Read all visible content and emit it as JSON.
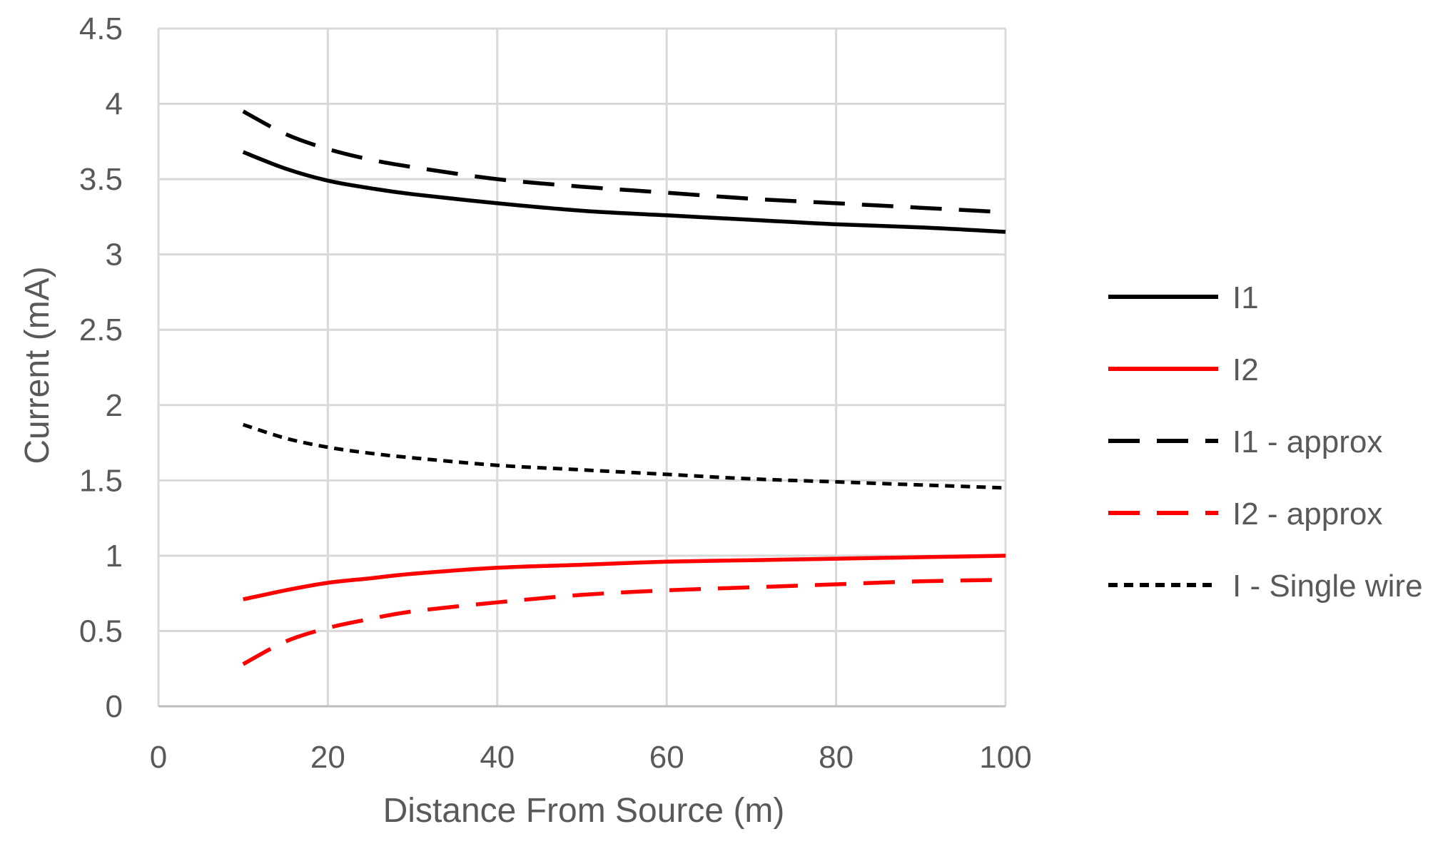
{
  "chart_data": {
    "type": "line",
    "title": "",
    "xlabel": "Distance From Source (m)",
    "ylabel": "Current (mA)",
    "xlim": [
      0,
      100
    ],
    "ylim": [
      0,
      4.5
    ],
    "xticks": [
      0,
      20,
      40,
      60,
      80,
      100
    ],
    "yticks": [
      0,
      0.5,
      1,
      1.5,
      2,
      2.5,
      3,
      3.5,
      4,
      4.5
    ],
    "x_tick_labels": [
      "0",
      "20",
      "40",
      "60",
      "80",
      "100"
    ],
    "y_tick_labels": [
      "0",
      "0.5",
      "1",
      "1.5",
      "2",
      "2.5",
      "3",
      "3.5",
      "4",
      "4.5"
    ],
    "grid": true,
    "legend_position": "right",
    "x": [
      10,
      15,
      20,
      25,
      30,
      40,
      50,
      60,
      70,
      80,
      90,
      100
    ],
    "series": [
      {
        "name": "I1",
        "color": "#000000",
        "dash": "solid",
        "values": [
          3.68,
          3.57,
          3.49,
          3.44,
          3.4,
          3.34,
          3.29,
          3.26,
          3.23,
          3.2,
          3.18,
          3.15
        ]
      },
      {
        "name": "I2",
        "color": "#ff0000",
        "dash": "solid",
        "values": [
          0.71,
          0.77,
          0.82,
          0.85,
          0.88,
          0.92,
          0.94,
          0.96,
          0.97,
          0.98,
          0.99,
          1.0
        ]
      },
      {
        "name": "I1 - approx",
        "color": "#000000",
        "dash": "long-dash",
        "values": [
          3.95,
          3.8,
          3.7,
          3.63,
          3.58,
          3.5,
          3.45,
          3.41,
          3.37,
          3.34,
          3.31,
          3.28
        ]
      },
      {
        "name": "I2 - approx",
        "color": "#ff0000",
        "dash": "long-dash",
        "values": [
          0.28,
          0.43,
          0.52,
          0.58,
          0.63,
          0.69,
          0.74,
          0.77,
          0.79,
          0.81,
          0.83,
          0.84
        ]
      },
      {
        "name": "I - Single wire",
        "color": "#000000",
        "dash": "short-dash",
        "values": [
          1.87,
          1.78,
          1.72,
          1.68,
          1.65,
          1.6,
          1.57,
          1.54,
          1.51,
          1.49,
          1.47,
          1.45
        ]
      }
    ]
  },
  "colors": {
    "grid": "#d9d9d9",
    "axis": "#bfbfbf",
    "text": "#595959"
  }
}
